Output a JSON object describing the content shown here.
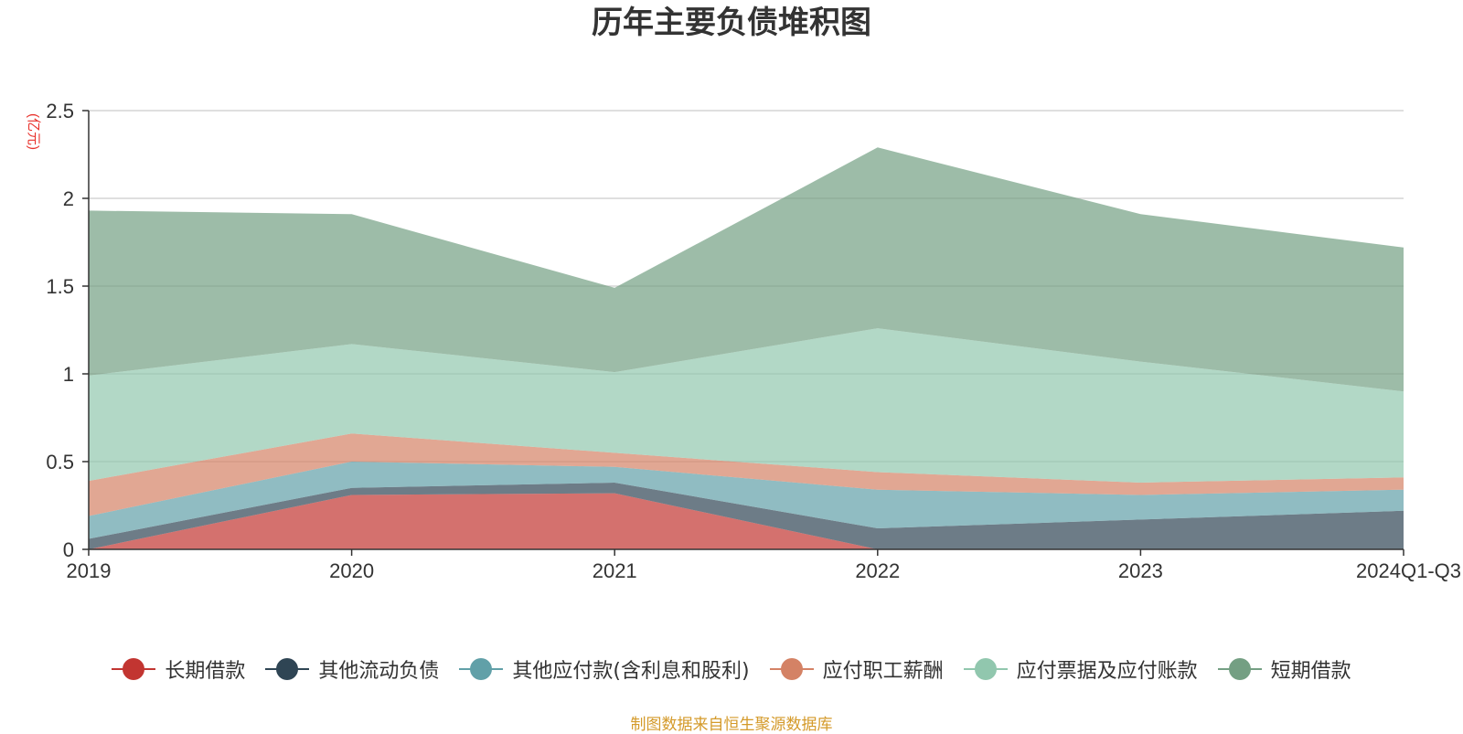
{
  "chart_data": {
    "type": "area",
    "stacked": true,
    "title": "历年主要负债堆积图",
    "ylabel": "(亿元)",
    "xlabel": "",
    "categories": [
      "2019",
      "2020",
      "2021",
      "2022",
      "2023",
      "2024Q1-Q3"
    ],
    "ylim": [
      0,
      2.5
    ],
    "yticks": [
      "0",
      "0.5",
      "1",
      "1.5",
      "2",
      "2.5"
    ],
    "grid": true,
    "legend_position": "bottom",
    "series": [
      {
        "name": "长期借款",
        "color": "#c23531",
        "values": [
          0.0,
          0.31,
          0.32,
          0.0,
          0.0,
          0.0
        ]
      },
      {
        "name": "其他流动负债",
        "color": "#2f4554",
        "values": [
          0.06,
          0.04,
          0.06,
          0.12,
          0.17,
          0.22
        ]
      },
      {
        "name": "其他应付款(含利息和股利)",
        "color": "#61a0a8",
        "values": [
          0.13,
          0.15,
          0.09,
          0.22,
          0.14,
          0.12
        ]
      },
      {
        "name": "应付职工薪酬",
        "color": "#d48265",
        "values": [
          0.2,
          0.16,
          0.08,
          0.1,
          0.07,
          0.07
        ]
      },
      {
        "name": "应付票据及应付账款",
        "color": "#91c7ae",
        "values": [
          0.6,
          0.51,
          0.46,
          0.82,
          0.69,
          0.49
        ]
      },
      {
        "name": "短期借款",
        "color": "#749f83",
        "values": [
          0.94,
          0.74,
          0.48,
          1.03,
          0.84,
          0.82
        ]
      }
    ]
  },
  "source_note": "制图数据来自恒生聚源数据库"
}
